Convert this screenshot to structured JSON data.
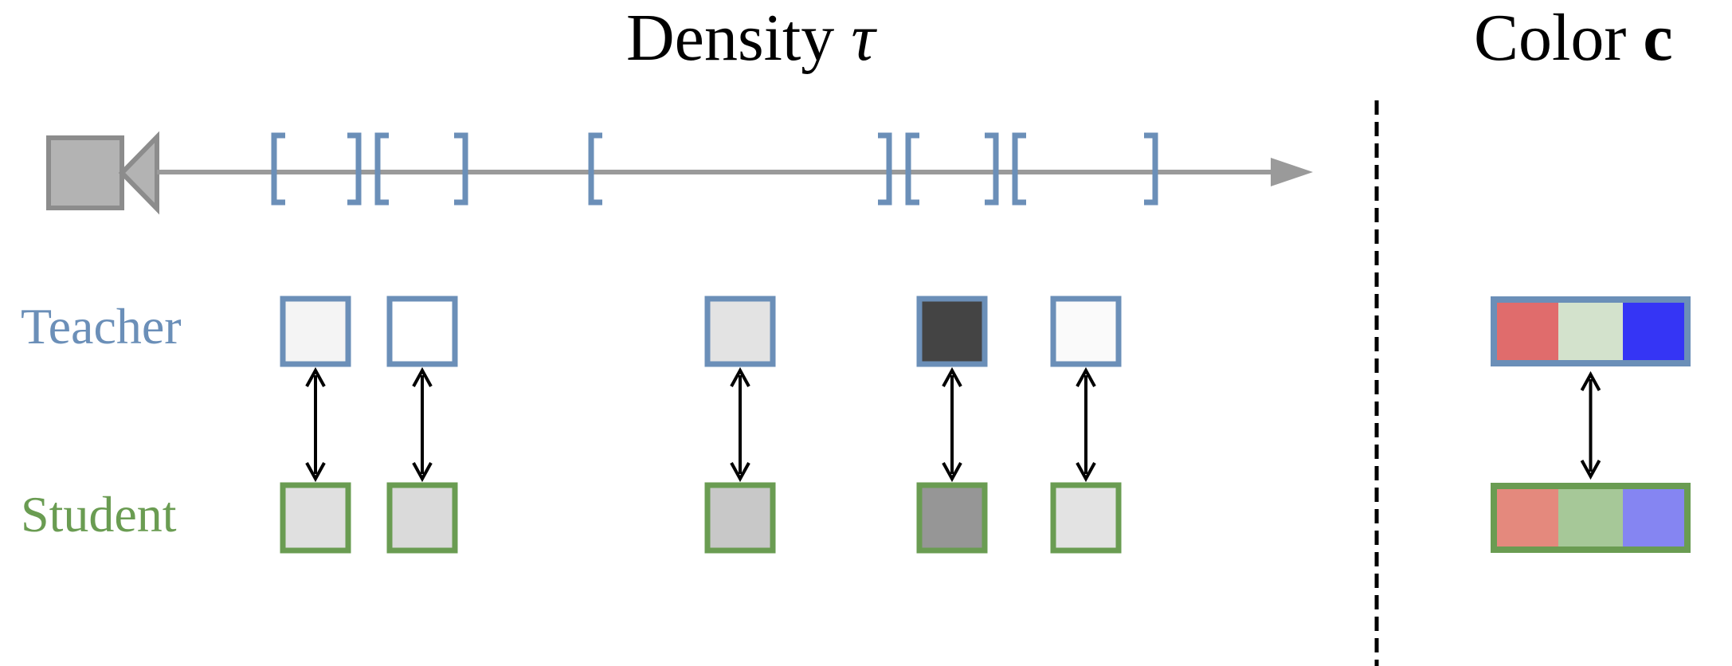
{
  "titles": {
    "density_word": "Density",
    "density_symbol": "τ",
    "color_word": "Color",
    "color_symbol": "c"
  },
  "labels": {
    "teacher": "Teacher",
    "student": "Student"
  },
  "colors": {
    "teacher": "#6b8fb8",
    "student": "#6a9c52",
    "ray": "#9a9a9a",
    "camera": "#b3b3b3",
    "camera_border": "#8c8c8c",
    "arrow": "#000000",
    "divider": "#000000"
  },
  "samples": [
    {
      "teacher_fill": "#f4f4f4",
      "student_fill": "#e0e0e0"
    },
    {
      "teacher_fill": "#ffffff",
      "student_fill": "#dadada"
    },
    {
      "teacher_fill": "#e3e3e3",
      "student_fill": "#c8c8c8"
    },
    {
      "teacher_fill": "#444444",
      "student_fill": "#969696"
    },
    {
      "teacher_fill": "#fafafa",
      "student_fill": "#e3e3e3"
    }
  ],
  "color_teacher": [
    "#e06c6c",
    "#d3e2cc",
    "#3535f5"
  ],
  "color_student": [
    "#e4897d",
    "#a6c898",
    "#8585f2"
  ]
}
